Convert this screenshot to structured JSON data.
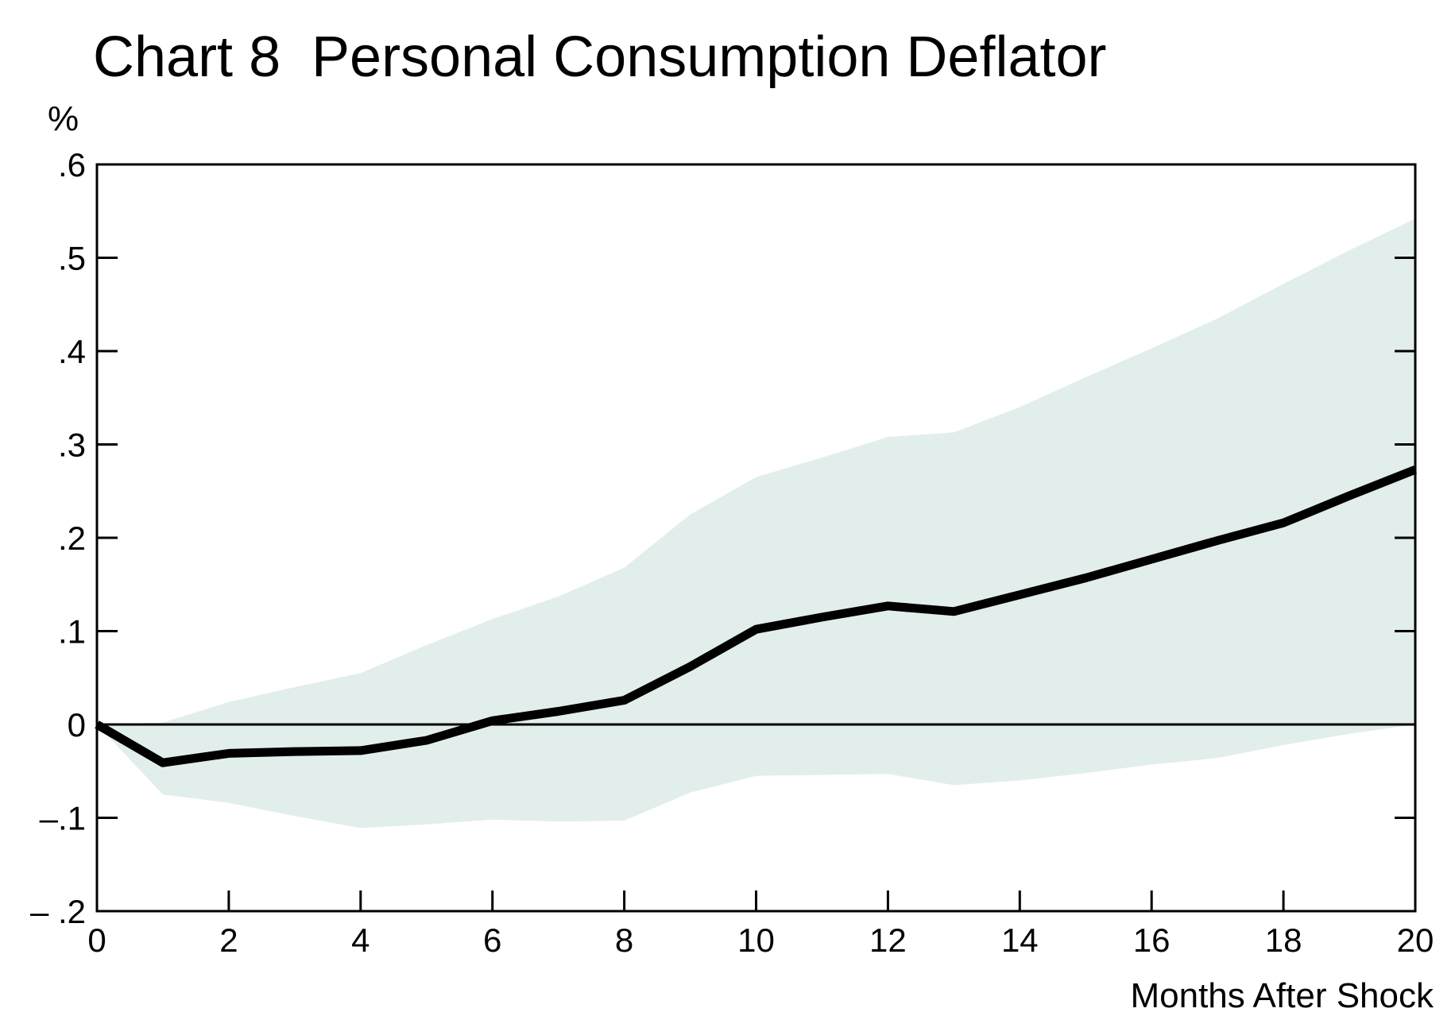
{
  "chart_data": {
    "type": "line",
    "chart_number": "Chart 8",
    "title": "Personal Consumption Deflator",
    "ylabel": "%",
    "xlabel": "Months After Shock",
    "xlim": [
      0,
      20
    ],
    "ylim": [
      -0.2,
      0.6
    ],
    "x_ticks": [
      0,
      2,
      4,
      6,
      8,
      10,
      12,
      14,
      16,
      18,
      20
    ],
    "x_tick_labels": [
      "0",
      "2",
      "4",
      "6",
      "8",
      "10",
      "12",
      "14",
      "16",
      "18",
      "20"
    ],
    "y_ticks": [
      -0.2,
      -0.1,
      0,
      0.1,
      0.2,
      0.3,
      0.4,
      0.5,
      0.6
    ],
    "y_tick_labels": [
      "– .2",
      "–.1",
      "0",
      ".1",
      ".2",
      ".3",
      ".4",
      ".5",
      ".6"
    ],
    "grid": false,
    "series": [
      {
        "values_x": [
          0,
          1,
          2,
          3,
          4,
          5,
          6,
          7,
          8,
          9,
          10,
          11,
          12,
          13,
          14,
          15,
          16,
          17,
          18,
          19,
          20
        ],
        "values": [
          0.0,
          -0.041,
          -0.031,
          -0.029,
          -0.028,
          -0.017,
          0.004,
          0.014,
          0.026,
          0.062,
          0.102,
          0.115,
          0.127,
          0.121,
          0.139,
          0.157,
          0.177,
          0.197,
          0.216,
          0.245,
          0.273
        ],
        "color": "#000000"
      }
    ],
    "band": {
      "x": [
        0,
        1,
        2,
        3,
        4,
        5,
        6,
        7,
        8,
        9,
        10,
        11,
        12,
        13,
        14,
        15,
        16,
        17,
        18,
        19,
        20
      ],
      "upper": [
        0.0,
        0.002,
        0.024,
        0.04,
        0.055,
        0.085,
        0.113,
        0.137,
        0.168,
        0.225,
        0.265,
        0.286,
        0.308,
        0.313,
        0.34,
        0.372,
        0.403,
        0.435,
        0.472,
        0.508,
        0.542
      ],
      "lower": [
        0.0,
        -0.075,
        -0.084,
        -0.098,
        -0.111,
        -0.107,
        -0.102,
        -0.104,
        -0.103,
        -0.073,
        -0.055,
        -0.054,
        -0.053,
        -0.065,
        -0.06,
        -0.052,
        -0.043,
        -0.036,
        -0.022,
        -0.01,
        0.0
      ],
      "color": "#e2eeeb"
    },
    "zero_line": true,
    "legend": "none"
  }
}
